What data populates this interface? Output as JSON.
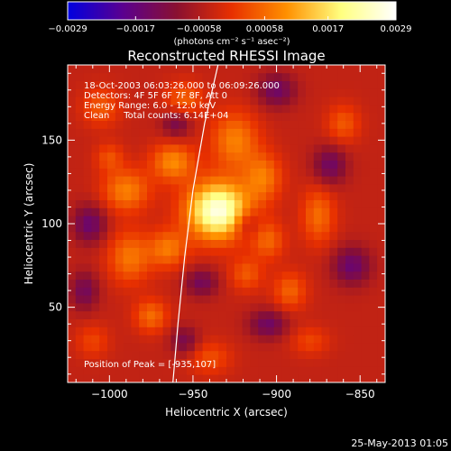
{
  "chart_data": {
    "type": "heatmap",
    "title": "Reconstructed RHESSI Image",
    "xlabel": "Heliocentric X (arcsec)",
    "ylabel": "Heliocentric Y (arcsec)",
    "xlim": [
      -1025,
      -835
    ],
    "ylim": [
      5,
      195
    ],
    "x_ticks": [
      -1000,
      -950,
      -900,
      -850
    ],
    "x_tick_labels": [
      "−1000",
      "−950",
      "−900",
      "−850"
    ],
    "y_ticks": [
      50,
      100,
      150
    ],
    "y_tick_labels": [
      "50",
      "100",
      "150"
    ],
    "colorbar": {
      "range": [
        -0.0029,
        0.0029
      ],
      "ticks": [
        -0.0029,
        -0.0017,
        -0.00058,
        0.00058,
        0.0017,
        0.0029
      ],
      "tick_labels": [
        "−0.0029",
        "−0.0017",
        "−0.00058",
        "0.00058",
        "0.0017",
        "0.0029"
      ],
      "label": "(photons cm⁻² s⁻¹ asec⁻²)",
      "colors": [
        "#0000e0",
        "#5a0090",
        "#8a1030",
        "#e83000",
        "#ff9000",
        "#ffff80",
        "#ffffff"
      ]
    },
    "annotations": [
      "18-Oct-2003 06:03:26.000 to 06:09:26.000",
      "Detectors: 4F 5F 6F 7F 8F, Att 0",
      "Energy Range: 6.0 - 12.0 keV",
      "Clean     Total counts: 6.14E+04"
    ],
    "peak_label": "Position of Peak = [-935,107]",
    "peak": [
      -935,
      107
    ],
    "limb_arc": [
      [
        -962,
        5
      ],
      [
        -959,
        40
      ],
      [
        -955,
        80
      ],
      [
        -950,
        120
      ],
      [
        -943,
        160
      ],
      [
        -935,
        195
      ]
    ],
    "sources": [
      {
        "x": -935,
        "y": 108,
        "sx": 13,
        "sy": 12,
        "amp": 0.0031
      },
      {
        "x": -962,
        "y": 137,
        "sx": 9,
        "sy": 8,
        "amp": 0.0013
      },
      {
        "x": -990,
        "y": 120,
        "sx": 10,
        "sy": 9,
        "amp": 0.0012
      },
      {
        "x": -988,
        "y": 80,
        "sx": 9,
        "sy": 11,
        "amp": 0.0011
      },
      {
        "x": -965,
        "y": 85,
        "sx": 8,
        "sy": 8,
        "amp": 0.0011
      },
      {
        "x": -925,
        "y": 150,
        "sx": 10,
        "sy": 12,
        "amp": 0.0012
      },
      {
        "x": -908,
        "y": 128,
        "sx": 8,
        "sy": 10,
        "amp": 0.0011
      },
      {
        "x": -905,
        "y": 90,
        "sx": 7,
        "sy": 8,
        "amp": 0.0009
      },
      {
        "x": -918,
        "y": 70,
        "sx": 7,
        "sy": 7,
        "amp": 0.0008
      },
      {
        "x": -875,
        "y": 105,
        "sx": 7,
        "sy": 12,
        "amp": 0.001
      },
      {
        "x": -975,
        "y": 45,
        "sx": 7,
        "sy": 7,
        "amp": 0.001
      },
      {
        "x": -892,
        "y": 60,
        "sx": 7,
        "sy": 8,
        "amp": 0.0009
      },
      {
        "x": -955,
        "y": 175,
        "sx": 8,
        "sy": 7,
        "amp": 0.0009
      },
      {
        "x": -1005,
        "y": 170,
        "sx": 8,
        "sy": 8,
        "amp": 0.0008
      },
      {
        "x": -860,
        "y": 160,
        "sx": 7,
        "sy": 8,
        "amp": 0.0008
      },
      {
        "x": -940,
        "y": 20,
        "sx": 9,
        "sy": 7,
        "amp": 0.0007
      },
      {
        "x": -880,
        "y": 30,
        "sx": 8,
        "sy": 6,
        "amp": 0.0006
      },
      {
        "x": -1010,
        "y": 30,
        "sx": 7,
        "sy": 7,
        "amp": 0.0006
      },
      {
        "x": -1000,
        "y": 140,
        "sx": 6,
        "sy": 6,
        "amp": 0.0007
      },
      {
        "x": -945,
        "y": 65,
        "sx": 7,
        "sy": 6,
        "amp": -0.001
      },
      {
        "x": -918,
        "y": 100,
        "sx": 6,
        "sy": 6,
        "amp": -0.0008
      },
      {
        "x": -960,
        "y": 160,
        "sx": 6,
        "sy": 6,
        "amp": -0.0009
      },
      {
        "x": -1012,
        "y": 100,
        "sx": 7,
        "sy": 8,
        "amp": -0.0012
      },
      {
        "x": -900,
        "y": 180,
        "sx": 8,
        "sy": 7,
        "amp": -0.0011
      },
      {
        "x": -868,
        "y": 135,
        "sx": 7,
        "sy": 8,
        "amp": -0.0011
      },
      {
        "x": -855,
        "y": 75,
        "sx": 8,
        "sy": 8,
        "amp": -0.0012
      },
      {
        "x": -905,
        "y": 40,
        "sx": 8,
        "sy": 6,
        "amp": -0.0011
      },
      {
        "x": -955,
        "y": 30,
        "sx": 6,
        "sy": 6,
        "amp": -0.0009
      },
      {
        "x": -1015,
        "y": 60,
        "sx": 6,
        "sy": 8,
        "amp": -0.001
      }
    ]
  },
  "footer": {
    "date": "25-May-2013 01:05"
  }
}
